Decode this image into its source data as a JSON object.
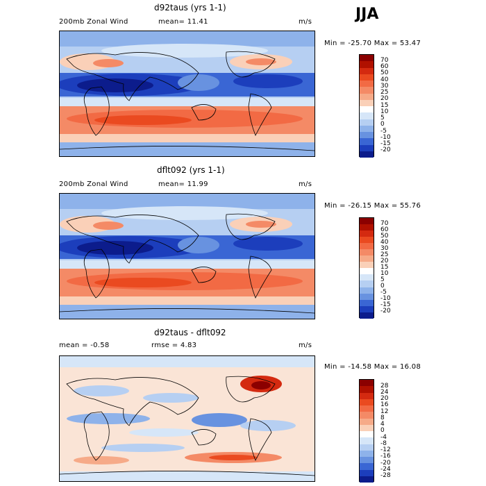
{
  "season": "JJA",
  "panels": [
    {
      "title": "d92taus (yrs 1-1)",
      "field": "200mb Zonal Wind",
      "stat_text": "mean=  11.41",
      "units": "m/s",
      "range_text": "Min = -25.70 Max =  53.47",
      "levels": [
        "70",
        "60",
        "50",
        "40",
        "30",
        "25",
        "20",
        "15",
        "10",
        "5",
        "0",
        "-5",
        "-10",
        "-15",
        "-20"
      ],
      "colors": [
        "#8b0000",
        "#b01000",
        "#d42a10",
        "#ea4a20",
        "#f26a44",
        "#f48a66",
        "#f6aa88",
        "#fad0b8",
        "#ffffff",
        "#d6e6f8",
        "#b6cff2",
        "#8eb2ea",
        "#6892e0",
        "#3a66d4",
        "#1c3ebc",
        "#0c1c8c"
      ]
    },
    {
      "title": "dflt092 (yrs 1-1)",
      "field": "200mb Zonal Wind",
      "stat_text": "mean=  11.99",
      "units": "m/s",
      "range_text": "Min = -26.15 Max =  55.76",
      "levels": [
        "70",
        "60",
        "50",
        "40",
        "30",
        "25",
        "20",
        "15",
        "10",
        "5",
        "0",
        "-5",
        "-10",
        "-15",
        "-20"
      ],
      "colors": [
        "#8b0000",
        "#b01000",
        "#d42a10",
        "#ea4a20",
        "#f26a44",
        "#f48a66",
        "#f6aa88",
        "#fad0b8",
        "#ffffff",
        "#d6e6f8",
        "#b6cff2",
        "#8eb2ea",
        "#6892e0",
        "#3a66d4",
        "#1c3ebc",
        "#0c1c8c"
      ]
    },
    {
      "title": "d92taus - dflt092",
      "stat_text": "mean =   -0.58",
      "rmse_text": "rmse =    4.83",
      "units": "m/s",
      "range_text": "Min = -14.58 Max =  16.08",
      "levels": [
        "28",
        "24",
        "20",
        "16",
        "12",
        "8",
        "4",
        "0",
        "-4",
        "-8",
        "-12",
        "-16",
        "-20",
        "-24",
        "-28"
      ],
      "colors": [
        "#8b0000",
        "#b01000",
        "#d42a10",
        "#ea4a20",
        "#f26a44",
        "#f48a66",
        "#f6aa88",
        "#fad0b8",
        "#ffffff",
        "#d6e6f8",
        "#b6cff2",
        "#8eb2ea",
        "#6892e0",
        "#3a66d4",
        "#1c3ebc",
        "#0c1c8c"
      ]
    }
  ]
}
